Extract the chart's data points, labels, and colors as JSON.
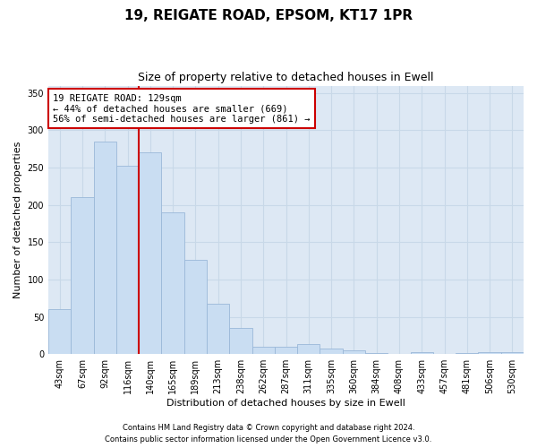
{
  "title": "19, REIGATE ROAD, EPSOM, KT17 1PR",
  "subtitle": "Size of property relative to detached houses in Ewell",
  "xlabel": "Distribution of detached houses by size in Ewell",
  "ylabel": "Number of detached properties",
  "categories": [
    "43sqm",
    "67sqm",
    "92sqm",
    "116sqm",
    "140sqm",
    "165sqm",
    "189sqm",
    "213sqm",
    "238sqm",
    "262sqm",
    "287sqm",
    "311sqm",
    "335sqm",
    "360sqm",
    "384sqm",
    "408sqm",
    "433sqm",
    "457sqm",
    "481sqm",
    "506sqm",
    "530sqm"
  ],
  "values": [
    60,
    210,
    285,
    252,
    270,
    190,
    126,
    68,
    35,
    10,
    10,
    13,
    7,
    5,
    2,
    0,
    3,
    0,
    1,
    3,
    3
  ],
  "bar_color": "#c9ddf2",
  "bar_edge_color": "#9ab8d8",
  "vline_x": 3.5,
  "vline_color": "#cc0000",
  "ylim": [
    0,
    360
  ],
  "yticks": [
    0,
    50,
    100,
    150,
    200,
    250,
    300,
    350
  ],
  "annotation_title": "19 REIGATE ROAD: 129sqm",
  "annotation_line1": "← 44% of detached houses are smaller (669)",
  "annotation_line2": "56% of semi-detached houses are larger (861) →",
  "annotation_box_color": "#ffffff",
  "annotation_box_edge": "#cc0000",
  "grid_color": "#c8d8e8",
  "plot_bg_color": "#dde8f4",
  "fig_bg_color": "#ffffff",
  "footer1": "Contains HM Land Registry data © Crown copyright and database right 2024.",
  "footer2": "Contains public sector information licensed under the Open Government Licence v3.0.",
  "title_fontsize": 11,
  "subtitle_fontsize": 9,
  "ylabel_fontsize": 8,
  "xlabel_fontsize": 8,
  "tick_fontsize": 7,
  "footer_fontsize": 6,
  "ann_fontsize": 7.5
}
